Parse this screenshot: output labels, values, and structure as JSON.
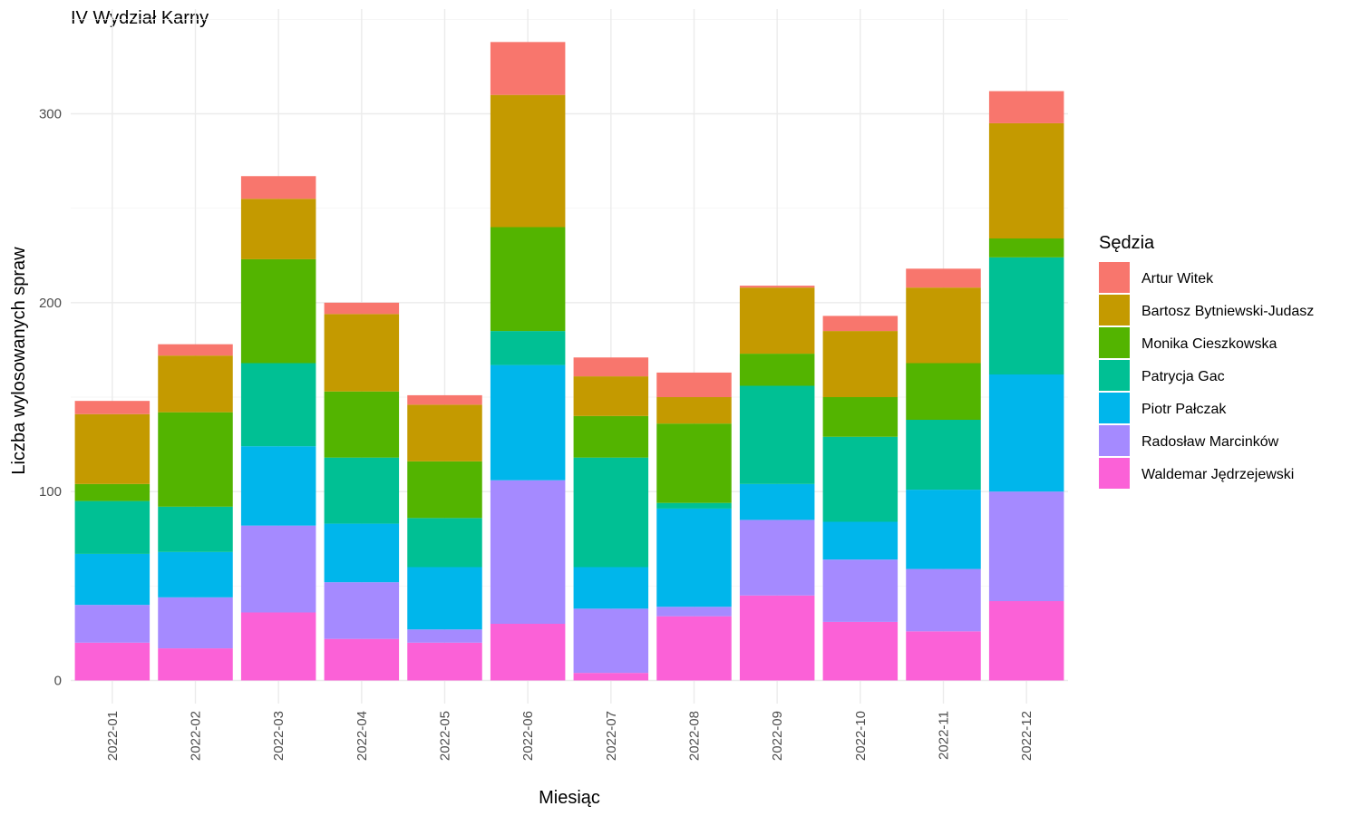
{
  "chart_data": {
    "type": "bar",
    "stacked": true,
    "title": "IV Wydział Karny",
    "xlabel": "Miesiąc",
    "ylabel": "Liczba wylosowanych spraw",
    "ylim": [
      -12,
      345
    ],
    "yticks": [
      0,
      100,
      200,
      300
    ],
    "grid": true,
    "legend": {
      "title": "Sędzia",
      "position": "right"
    },
    "categories": [
      "2022-01",
      "2022-02",
      "2022-03",
      "2022-04",
      "2022-05",
      "2022-06",
      "2022-07",
      "2022-08",
      "2022-09",
      "2022-10",
      "2022-11",
      "2022-12"
    ],
    "series": [
      {
        "name": "Waldemar Jędrzejewski",
        "color": "#FB61D7",
        "values": [
          20,
          17,
          36,
          22,
          20,
          30,
          4,
          34,
          45,
          31,
          26,
          42
        ]
      },
      {
        "name": "Radosław Marcinków",
        "color": "#A58AFF",
        "values": [
          20,
          27,
          46,
          30,
          7,
          76,
          34,
          5,
          40,
          33,
          33,
          58
        ]
      },
      {
        "name": "Piotr Pałczak",
        "color": "#00B6EB",
        "values": [
          27,
          24,
          42,
          31,
          33,
          61,
          22,
          52,
          19,
          20,
          42,
          62
        ]
      },
      {
        "name": "Patrycja Gac",
        "color": "#00C094",
        "values": [
          28,
          24,
          44,
          35,
          26,
          18,
          58,
          3,
          52,
          45,
          37,
          62
        ]
      },
      {
        "name": "Monika Cieszkowska",
        "color": "#53B400",
        "values": [
          9,
          50,
          55,
          35,
          30,
          55,
          22,
          42,
          17,
          21,
          30,
          10
        ]
      },
      {
        "name": "Bartosz Bytniewski-Judasz",
        "color": "#C49A00",
        "values": [
          37,
          30,
          32,
          41,
          30,
          70,
          21,
          14,
          35,
          35,
          40,
          61
        ]
      },
      {
        "name": "Artur Witek",
        "color": "#F8766D",
        "values": [
          7,
          6,
          12,
          6,
          5,
          28,
          10,
          13,
          1,
          8,
          10,
          17
        ]
      }
    ],
    "legend_order": [
      "Artur Witek",
      "Bartosz Bytniewski-Judasz",
      "Monika Cieszkowska",
      "Patrycja Gac",
      "Piotr Pałczak",
      "Radosław Marcinków",
      "Waldemar Jędrzejewski"
    ]
  }
}
